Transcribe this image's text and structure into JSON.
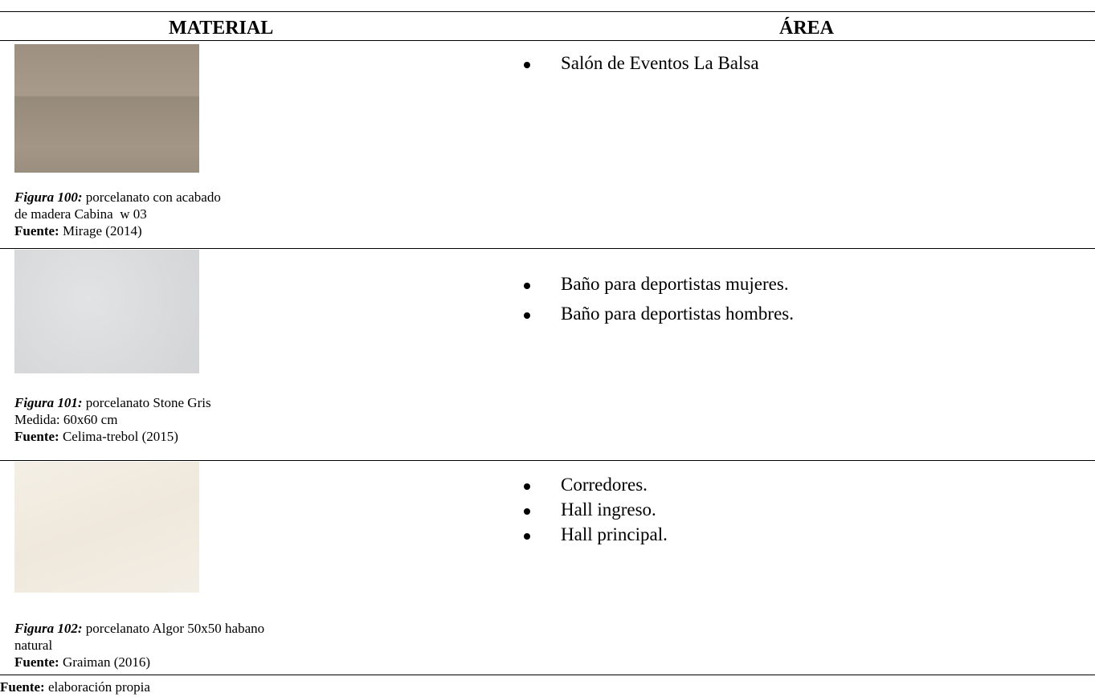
{
  "header": {
    "material": "MATERIAL",
    "area": "ÁREA"
  },
  "rows": [
    {
      "caption": {
        "label": "Figura 100:",
        "lines": [
          "porcelanato con acabado",
          "de madera Cabina  w 03"
        ]
      },
      "source": {
        "label": "Fuente:",
        "text": "Mirage (2014)"
      },
      "areas": [
        "Salón de Eventos La Balsa"
      ]
    },
    {
      "caption": {
        "label": "Figura 101:",
        "lines": [
          "porcelanato Stone Gris",
          "Medida: 60x60 cm"
        ]
      },
      "source": {
        "label": "Fuente:",
        "text": "Celima-trebol (2015)"
      },
      "areas": [
        "Baño para deportistas mujeres.",
        "Baño para deportistas hombres."
      ]
    },
    {
      "caption": {
        "label": "Figura 102:",
        "lines": [
          "porcelanato Algor 50x50 habano",
          "natural"
        ]
      },
      "source": {
        "label": "Fuente:",
        "text": "Graiman (2016)"
      },
      "areas": [
        "Corredores.",
        "Hall ingreso.",
        "Hall principal."
      ]
    }
  ],
  "footer": {
    "label": "Fuente:",
    "text": "elaboración propia"
  }
}
